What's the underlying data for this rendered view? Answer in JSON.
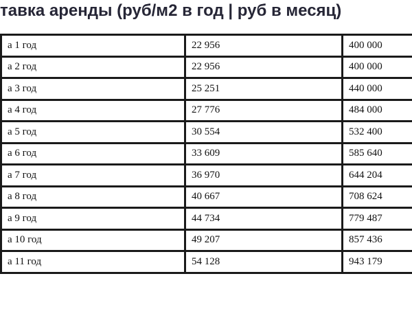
{
  "title": "тавка аренды (руб/м2 в год | руб в месяц)",
  "rows": [
    {
      "period": "а 1 год",
      "rate_m2_year": "22 956",
      "rate_month": "400 000"
    },
    {
      "period": "а 2 год",
      "rate_m2_year": "22 956",
      "rate_month": "400 000"
    },
    {
      "period": "а 3 год",
      "rate_m2_year": "25 251",
      "rate_month": "440 000"
    },
    {
      "period": "а 4 год",
      "rate_m2_year": "27 776",
      "rate_month": "484 000"
    },
    {
      "period": "а 5 год",
      "rate_m2_year": "30 554",
      "rate_month": "532 400"
    },
    {
      "period": "а 6 год",
      "rate_m2_year": "33 609",
      "rate_month": "585 640"
    },
    {
      "period": "а 7 год",
      "rate_m2_year": "36 970",
      "rate_month": "644 204"
    },
    {
      "period": "а 8 год",
      "rate_m2_year": "40 667",
      "rate_month": "708 624"
    },
    {
      "period": "а 9 год",
      "rate_m2_year": "44 734",
      "rate_month": "779 487"
    },
    {
      "period": "а 10 год",
      "rate_m2_year": "49 207",
      "rate_month": "857 436"
    },
    {
      "period": "а 11 год",
      "rate_m2_year": "54 128",
      "rate_month": "943 179"
    }
  ]
}
